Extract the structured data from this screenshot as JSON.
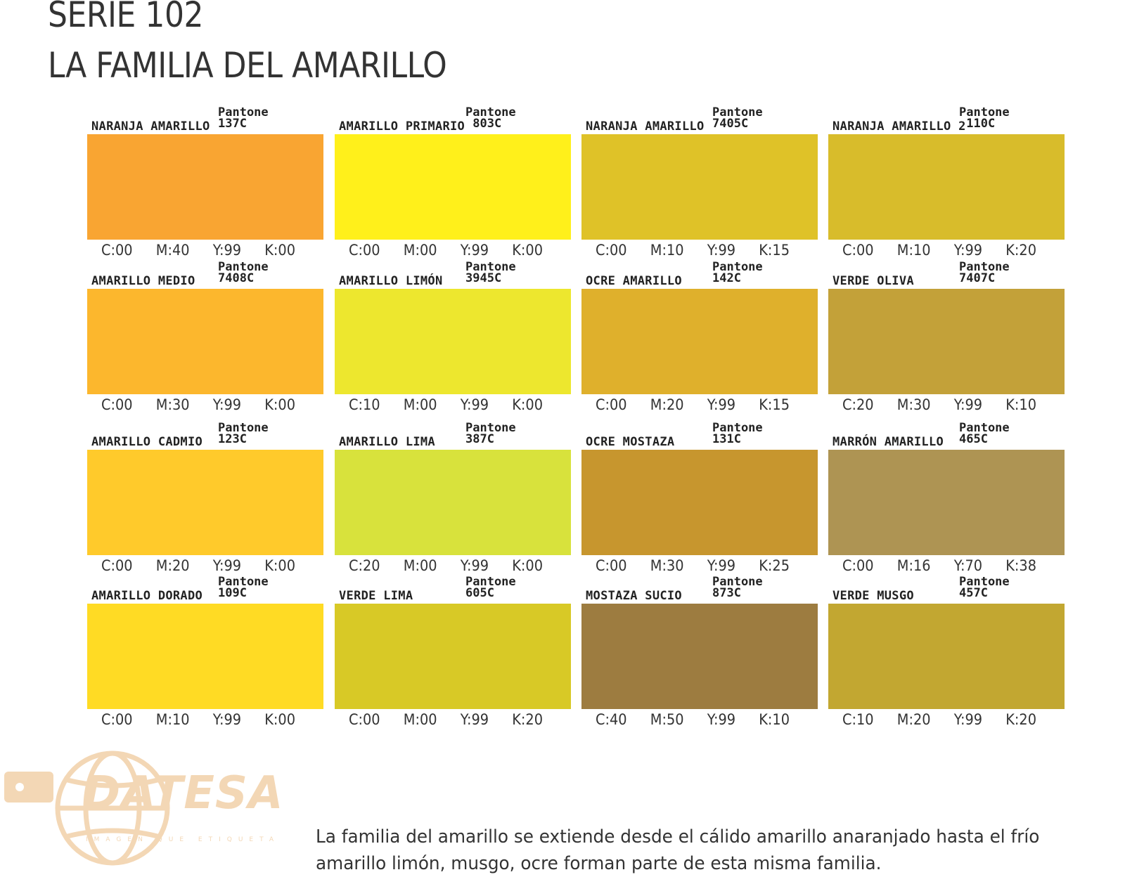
{
  "header": {
    "title_line1": "SERIE 102",
    "title_line2": "LA FAMILIA DEL AMARILLO"
  },
  "swatches": [
    {
      "name": "NARANJA AMARILLO",
      "pantone_label": "Pantone",
      "pantone_code": "137C",
      "color": "#f9a532",
      "c": "C:00",
      "m": "M:40",
      "y": "Y:99",
      "k": "K:00"
    },
    {
      "name": "AMARILLO PRIMARIO",
      "pantone_label": "Pantone",
      "pantone_code": " 803C",
      "color": "#fff01b",
      "c": "C:00",
      "m": "M:00",
      "y": "Y:99",
      "k": "K:00"
    },
    {
      "name": "NARANJA AMARILLO",
      "pantone_label": "Pantone",
      "pantone_code": "7405C",
      "color": "#dfc228",
      "c": "C:00",
      "m": "M:10",
      "y": "Y:99",
      "k": "K:15"
    },
    {
      "name": "NARANJA AMARILLO 2",
      "pantone_label": "Pantone",
      "pantone_code": " 110C",
      "color": "#d8bc2b",
      "c": "C:00",
      "m": "M:10",
      "y": "Y:99",
      "k": "K:20"
    },
    {
      "name": "AMARILLO MEDIO",
      "pantone_label": "Pantone",
      "pantone_code": "7408C",
      "color": "#fcb72d",
      "c": "C:00",
      "m": "M:30",
      "y": "Y:99",
      "k": "K:00"
    },
    {
      "name": "AMARILLO LIMÓN",
      "pantone_label": "Pantone",
      "pantone_code": "3945C",
      "color": "#ede72e",
      "c": "C:10",
      "m": "M:00",
      "y": "Y:99",
      "k": "K:00"
    },
    {
      "name": "OCRE AMARILLO",
      "pantone_label": "Pantone",
      "pantone_code": "142C",
      "color": "#dfb02c",
      "c": "C:00",
      "m": "M:20",
      "y": "Y:99",
      "k": "K:15"
    },
    {
      "name": "VERDE OLIVA",
      "pantone_label": "Pantone",
      "pantone_code": "7407C",
      "color": "#c3a139",
      "c": "C:20",
      "m": "M:30",
      "y": "Y:99",
      "k": "K:10"
    },
    {
      "name": "AMARILLO CADMIO",
      "pantone_label": "Pantone",
      "pantone_code": "123C",
      "color": "#ffca2b",
      "c": "C:00",
      "m": "M:20",
      "y": "Y:99",
      "k": "K:00"
    },
    {
      "name": "AMARILLO LIMA",
      "pantone_label": "Pantone",
      "pantone_code": "387C",
      "color": "#d8e23c",
      "c": "C:20",
      "m": "M:00",
      "y": "Y:99",
      "k": "K:00"
    },
    {
      "name": "OCRE MOSTAZA",
      "pantone_label": "Pantone",
      "pantone_code": "131C",
      "color": "#c7962e",
      "c": "C:00",
      "m": "M:30",
      "y": "Y:99",
      "k": "K:25"
    },
    {
      "name": "MARRÓN AMARILLO",
      "pantone_label": "Pantone",
      "pantone_code": "465C",
      "color": "#ae9453",
      "c": "C:00",
      "m": "M:16",
      "y": "Y:70",
      "k": "K:38"
    },
    {
      "name": "AMARILLO DORADO",
      "pantone_label": "Pantone",
      "pantone_code": "109C",
      "color": "#ffdb24",
      "c": "C:00",
      "m": "M:10",
      "y": "Y:99",
      "k": "K:00"
    },
    {
      "name": "VERDE LIMA",
      "pantone_label": "Pantone",
      "pantone_code": "605C",
      "color": "#d8c926",
      "c": "C:00",
      "m": "M:00",
      "y": "Y:99",
      "k": "K:20"
    },
    {
      "name": "MOSTAZA SUCIO",
      "pantone_label": "Pantone",
      "pantone_code": "873C",
      "color": "#9d7c40",
      "c": "C:40",
      "m": "M:50",
      "y": "Y:99",
      "k": "K:10"
    },
    {
      "name": "VERDE MUSGO",
      "pantone_label": "Pantone",
      "pantone_code": "457C",
      "color": "#c2a731",
      "c": "C:10",
      "m": "M:20",
      "y": "Y:99",
      "k": "K:20"
    }
  ],
  "logo": {
    "brand": "DATESA",
    "tagline": "IMAGEN QUE ETIQUETA",
    "color": "#f3d7b5"
  },
  "description": "La familia del amarillo se extiende desde el cálido amarillo anaranjado hasta el frío amarillo limón, musgo, ocre  forman parte de esta misma familia."
}
